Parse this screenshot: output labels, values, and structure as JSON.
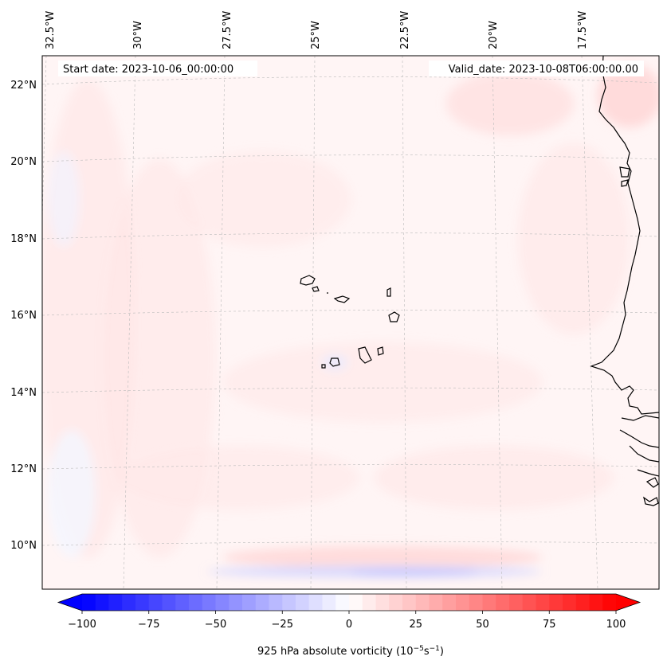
{
  "map": {
    "start_date": "Start date: 2023-10-06_00:00:00",
    "valid_date": "Valid_date: 2023-10-08T06:00:00.00",
    "longitude_labels": [
      "32.5°W",
      "30°W",
      "27.5°W",
      "25°W",
      "22.5°W",
      "20°W",
      "17.5°W"
    ],
    "latitude_labels": [
      "22°N",
      "20°N",
      "18°N",
      "16°N",
      "14°N",
      "12°N",
      "10°N"
    ],
    "features": [
      "Cape Verde islands",
      "West African coastline"
    ]
  },
  "colorbar": {
    "title_main": "925 hPa absolute vorticity (10",
    "title_exp1": "−5",
    "title_mid": "s",
    "title_exp2": "−1",
    "title_end": ")",
    "min": -100,
    "max": 100,
    "tick_values": [
      -100,
      -75,
      -50,
      -25,
      0,
      25,
      50,
      75,
      100
    ],
    "tick_labels": [
      "−100",
      "−75",
      "−50",
      "−25",
      "0",
      "25",
      "50",
      "75",
      "100"
    ],
    "colormap": "bwr",
    "low_color": "#0000ff",
    "mid_color": "#ffffff",
    "high_color": "#ff0000"
  }
}
